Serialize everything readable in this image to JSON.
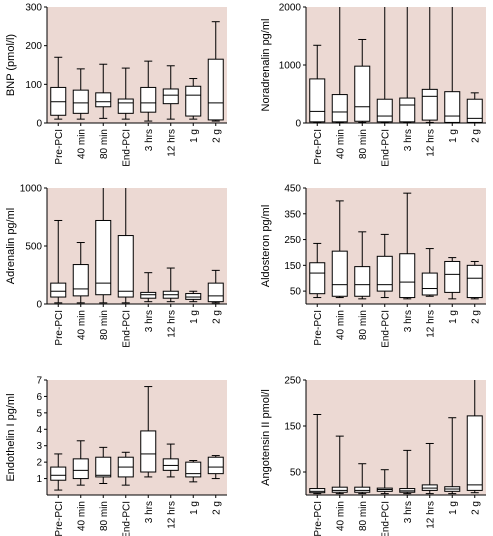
{
  "colors": {
    "plot_bg": "#ecd9d3",
    "box_fill": "#ffffff",
    "stroke": "#000000"
  },
  "chart_data": [
    {
      "type": "boxplot",
      "ylabel": "BNP (pmol/l)",
      "ylim": [
        0,
        300
      ],
      "yticks": [
        "0",
        "100",
        "200",
        "300"
      ],
      "categories": [
        "Pre-PCI",
        "40 min",
        "80 min",
        "End-PCI",
        "3 hrs",
        "12 hrs",
        "1 g",
        "2 g"
      ],
      "boxes": [
        {
          "min": 10,
          "q1": 20,
          "median": 55,
          "q3": 92,
          "max": 170
        },
        {
          "min": 10,
          "q1": 25,
          "median": 52,
          "q3": 85,
          "max": 140
        },
        {
          "min": 12,
          "q1": 42,
          "median": 55,
          "q3": 78,
          "max": 152
        },
        {
          "min": 10,
          "q1": 25,
          "median": 52,
          "q3": 62,
          "max": 142
        },
        {
          "min": 5,
          "q1": 28,
          "median": 52,
          "q3": 92,
          "max": 160
        },
        {
          "min": 10,
          "q1": 50,
          "median": 72,
          "q3": 88,
          "max": 148
        },
        {
          "min": 10,
          "q1": 18,
          "median": 72,
          "q3": 95,
          "max": 115
        },
        {
          "min": 5,
          "q1": 8,
          "median": 52,
          "q3": 165,
          "max": 262
        }
      ]
    },
    {
      "type": "boxplot",
      "ylabel": "Noradrenalin pg/ml",
      "ylim": [
        0,
        2000
      ],
      "yticks": [
        "0",
        "1000",
        "2000"
      ],
      "categories": [
        "Pre-PCI",
        "40 min",
        "80 min",
        "End-PCI",
        "3 hrs",
        "12 hrs",
        "1 g",
        "2 g"
      ],
      "boxes": [
        {
          "min": 10,
          "q1": 20,
          "median": 200,
          "q3": 760,
          "max": 1340
        },
        {
          "min": 10,
          "q1": 20,
          "median": 190,
          "q3": 490,
          "max": 2000
        },
        {
          "min": 10,
          "q1": 30,
          "median": 280,
          "q3": 980,
          "max": 1440
        },
        {
          "min": 10,
          "q1": 20,
          "median": 120,
          "q3": 410,
          "max": 2000
        },
        {
          "min": 10,
          "q1": 20,
          "median": 310,
          "q3": 430,
          "max": 2000
        },
        {
          "min": 10,
          "q1": 50,
          "median": 460,
          "q3": 580,
          "max": 2000
        },
        {
          "min": 5,
          "q1": 10,
          "median": 120,
          "q3": 540,
          "max": 2000
        },
        {
          "min": 5,
          "q1": 10,
          "median": 80,
          "q3": 410,
          "max": 520
        }
      ]
    },
    {
      "type": "boxplot",
      "ylabel": "Adrenalin pg/ml",
      "ylim": [
        0,
        1000
      ],
      "yticks": [
        "0",
        "500",
        "1000"
      ],
      "categories": [
        "Pre-PCI",
        "40 min",
        "80 min",
        "End-PCI",
        "3 hrs",
        "12 hrs",
        "1 g",
        "2 g"
      ],
      "boxes": [
        {
          "min": 10,
          "q1": 60,
          "median": 110,
          "q3": 180,
          "max": 720
        },
        {
          "min": 10,
          "q1": 70,
          "median": 130,
          "q3": 340,
          "max": 530
        },
        {
          "min": 10,
          "q1": 80,
          "median": 180,
          "q3": 720,
          "max": 1000
        },
        {
          "min": 10,
          "q1": 60,
          "median": 110,
          "q3": 590,
          "max": 1000
        },
        {
          "min": 20,
          "q1": 50,
          "median": 80,
          "q3": 100,
          "max": 270
        },
        {
          "min": 20,
          "q1": 50,
          "median": 80,
          "q3": 110,
          "max": 310
        },
        {
          "min": 20,
          "q1": 40,
          "median": 60,
          "q3": 90,
          "max": 110
        },
        {
          "min": 10,
          "q1": 20,
          "median": 70,
          "q3": 180,
          "max": 290
        }
      ]
    },
    {
      "type": "boxplot",
      "ylabel": "Aldosteron pg/ml",
      "ylim": [
        0,
        450
      ],
      "yticks": [
        "50",
        "150",
        "250",
        "350",
        "450"
      ],
      "yticks_values": [
        50,
        150,
        250,
        350,
        450
      ],
      "categories": [
        "Pre-PCI",
        "40 min",
        "80 min",
        "End-PCI",
        "3 hrs",
        "12 hrs",
        "1 g",
        "2 g"
      ],
      "boxes": [
        {
          "min": 25,
          "q1": 40,
          "median": 120,
          "q3": 160,
          "max": 235
        },
        {
          "min": 25,
          "q1": 30,
          "median": 75,
          "q3": 205,
          "max": 400
        },
        {
          "min": 20,
          "q1": 30,
          "median": 75,
          "q3": 145,
          "max": 280
        },
        {
          "min": 25,
          "q1": 50,
          "median": 75,
          "q3": 185,
          "max": 270
        },
        {
          "min": 20,
          "q1": 25,
          "median": 85,
          "q3": 195,
          "max": 430
        },
        {
          "min": 30,
          "q1": 35,
          "median": 60,
          "q3": 120,
          "max": 215
        },
        {
          "min": 20,
          "q1": 45,
          "median": 115,
          "q3": 165,
          "max": 180
        },
        {
          "min": 20,
          "q1": 25,
          "median": 100,
          "q3": 150,
          "max": 165
        }
      ]
    },
    {
      "type": "boxplot",
      "ylabel": "Endothelin I pg/ml",
      "ylim": [
        0,
        7
      ],
      "yticks": [
        "1",
        "2",
        "3",
        "4",
        "5",
        "6",
        "7"
      ],
      "yticks_values": [
        1,
        2,
        3,
        4,
        5,
        6,
        7
      ],
      "categories": [
        "Pre-PCI",
        "40 min",
        "80 min",
        "End-PCI",
        "3 hrs",
        "12 hrs",
        "1 g",
        "2 g"
      ],
      "boxes": [
        {
          "min": 0.3,
          "q1": 0.9,
          "median": 1.2,
          "q3": 1.7,
          "max": 2.5
        },
        {
          "min": 0.6,
          "q1": 1.0,
          "median": 1.5,
          "q3": 2.2,
          "max": 3.3
        },
        {
          "min": 0.7,
          "q1": 1.1,
          "median": 1.2,
          "q3": 2.3,
          "max": 2.9
        },
        {
          "min": 0.6,
          "q1": 1.1,
          "median": 1.7,
          "q3": 2.3,
          "max": 2.6
        },
        {
          "min": 1.1,
          "q1": 1.4,
          "median": 2.5,
          "q3": 3.9,
          "max": 6.6
        },
        {
          "min": 1.1,
          "q1": 1.5,
          "median": 1.8,
          "q3": 2.2,
          "max": 3.1
        },
        {
          "min": 0.8,
          "q1": 1.1,
          "median": 1.3,
          "q3": 2.0,
          "max": 2.1
        },
        {
          "min": 1.0,
          "q1": 1.3,
          "median": 1.7,
          "q3": 2.3,
          "max": 2.4
        }
      ]
    },
    {
      "type": "boxplot",
      "ylabel": "Angotensin II pmol/l",
      "ylim": [
        0,
        250
      ],
      "yticks": [
        "50",
        "150",
        "250"
      ],
      "yticks_values": [
        50,
        150,
        250
      ],
      "categories": [
        "Pre-PCI",
        "40 min",
        "80 min",
        "End-PCI",
        "3 hrs",
        "12 hrs",
        "1 g",
        "2 g"
      ],
      "boxes": [
        {
          "min": 3,
          "q1": 5,
          "median": 8,
          "q3": 14,
          "max": 175
        },
        {
          "min": 3,
          "q1": 6,
          "median": 10,
          "q3": 17,
          "max": 128
        },
        {
          "min": 3,
          "q1": 6,
          "median": 10,
          "q3": 17,
          "max": 68
        },
        {
          "min": 3,
          "q1": 8,
          "median": 12,
          "q3": 15,
          "max": 55
        },
        {
          "min": 3,
          "q1": 6,
          "median": 9,
          "q3": 14,
          "max": 97
        },
        {
          "min": 3,
          "q1": 10,
          "median": 15,
          "q3": 22,
          "max": 112
        },
        {
          "min": 3,
          "q1": 8,
          "median": 13,
          "q3": 18,
          "max": 168
        },
        {
          "min": 5,
          "q1": 10,
          "median": 22,
          "q3": 172,
          "max": 250
        }
      ]
    }
  ]
}
